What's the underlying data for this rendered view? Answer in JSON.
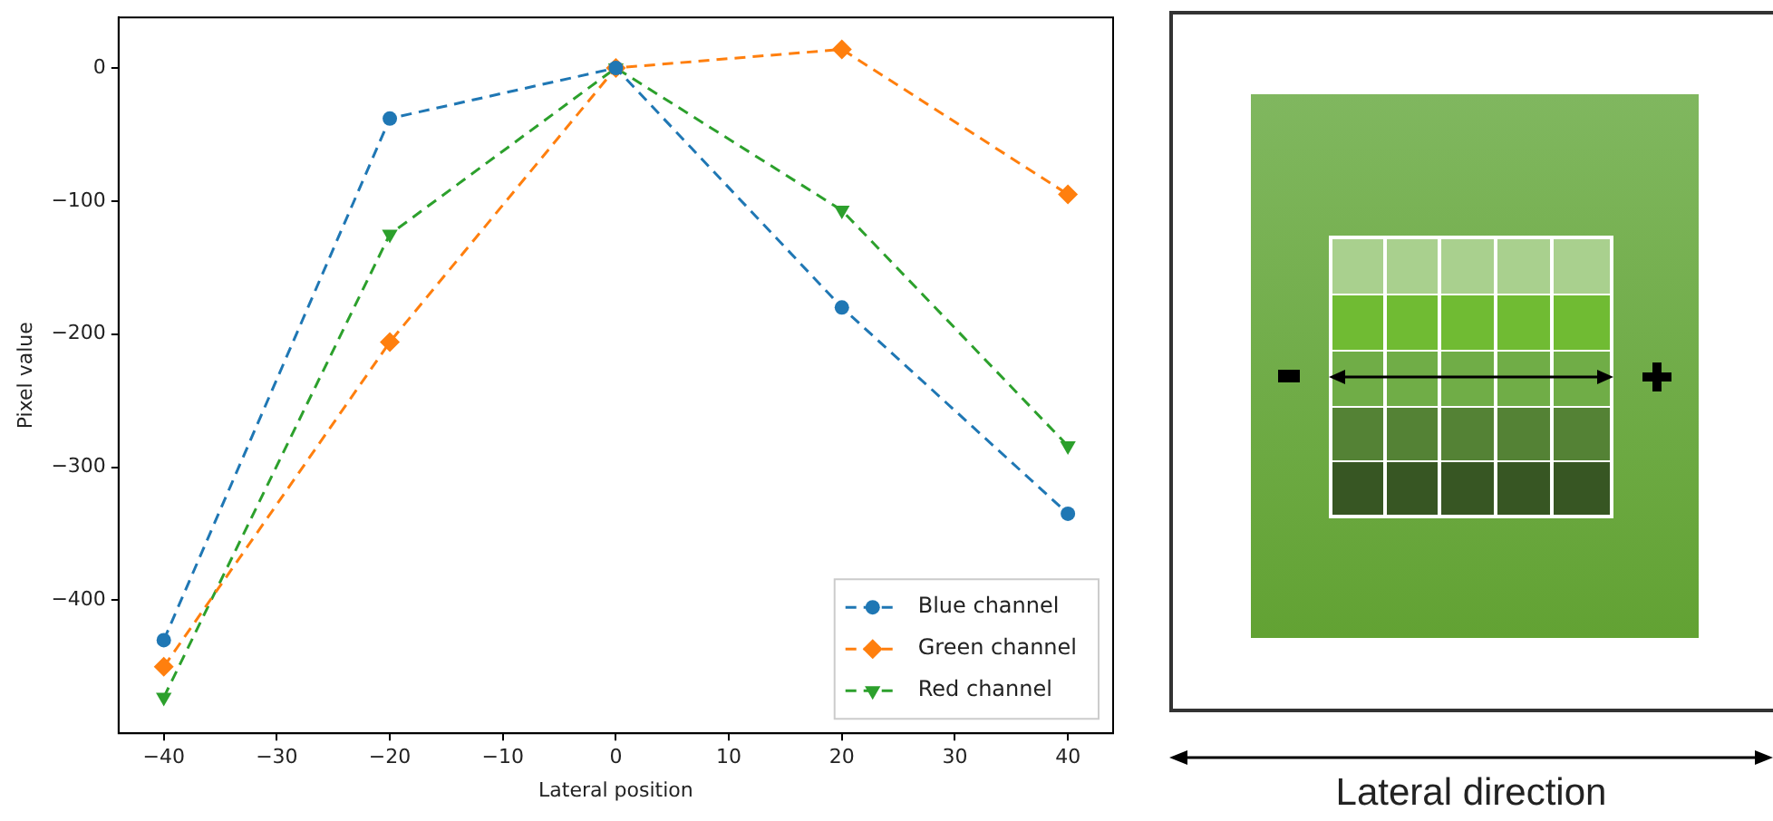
{
  "chart_data": {
    "type": "line",
    "xlabel": "Lateral position",
    "ylabel": "Pixel value",
    "x": [
      -40,
      -20,
      0,
      20,
      40
    ],
    "series": [
      {
        "name": "Blue channel",
        "color": "#1f77b4",
        "marker": "circle",
        "values": [
          -430,
          -38,
          0,
          -180,
          -335
        ]
      },
      {
        "name": "Green channel",
        "color": "#ff7f0e",
        "marker": "diamond",
        "values": [
          -450,
          -206,
          0,
          14,
          -95
        ]
      },
      {
        "name": "Red channel",
        "color": "#2ca02c",
        "marker": "triangle",
        "values": [
          -473,
          -125,
          0,
          -107,
          -284
        ]
      }
    ],
    "line_style": "dashed",
    "grid": false,
    "legend": "bottom right",
    "xlim": [
      -44,
      44
    ],
    "xticks": [
      -40,
      -30,
      -20,
      -10,
      0,
      10,
      20,
      30,
      40
    ],
    "ylim": [
      -500,
      38
    ],
    "yticks": [
      -400,
      -300,
      -200,
      -100,
      0
    ],
    "annotations": [
      "Lateral direction"
    ]
  }
}
